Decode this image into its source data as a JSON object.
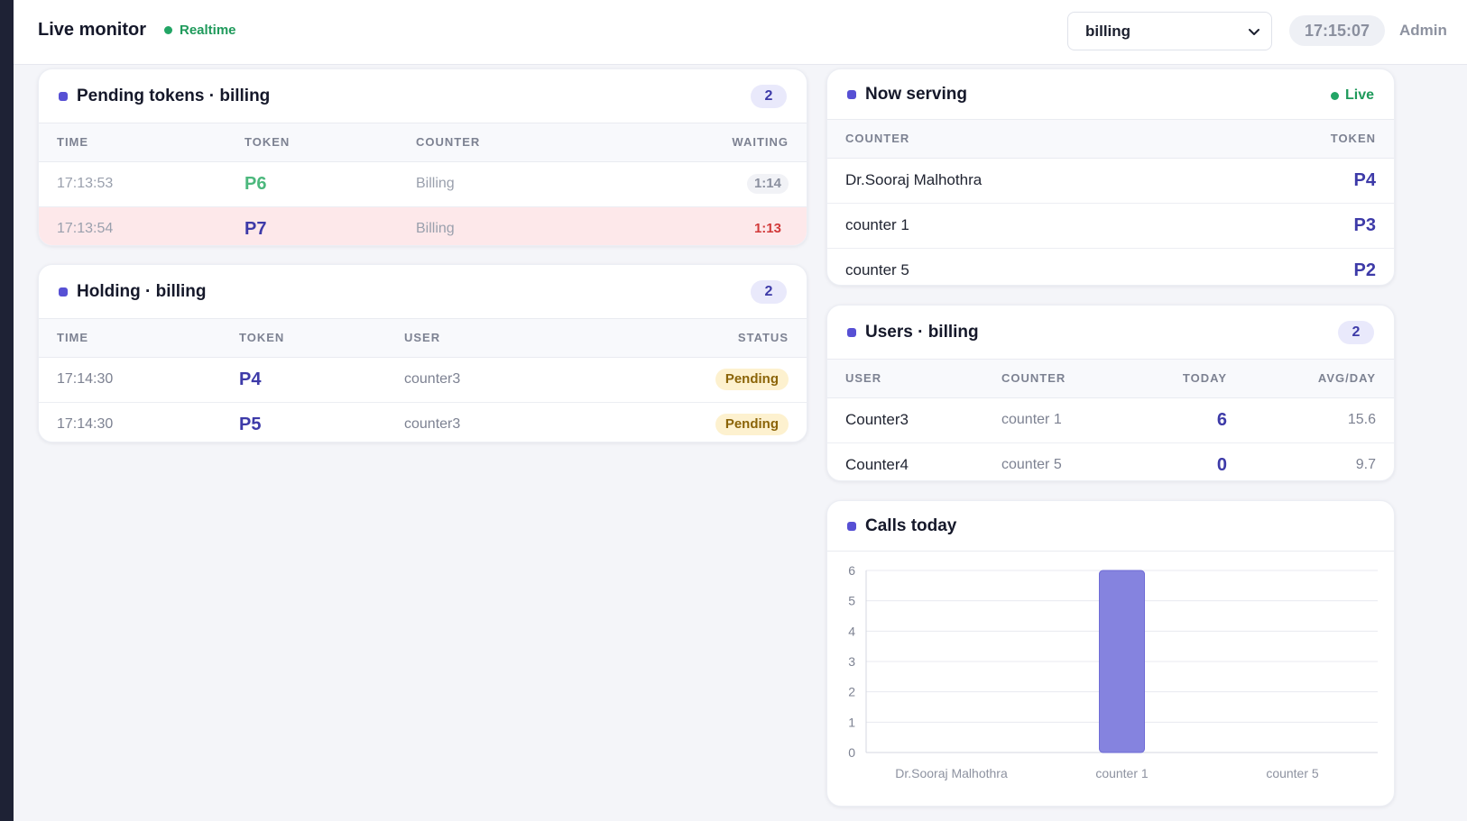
{
  "header": {
    "title": "Live monitor",
    "realtime_label": "Realtime",
    "department_selected": "billing",
    "clock": "17:15:07",
    "user": "Admin"
  },
  "pending": {
    "title": "Pending tokens · billing",
    "count": "2",
    "columns": [
      "TIME",
      "TOKEN",
      "COUNTER",
      "WAITING"
    ],
    "rows": [
      {
        "time": "17:13:53",
        "token": "P6",
        "counter": "Billing",
        "waiting": "1:14"
      },
      {
        "time": "17:13:54",
        "token": "P7",
        "counter": "Billing",
        "waiting": "1:13"
      }
    ]
  },
  "holding": {
    "title": "Holding · billing",
    "count": "2",
    "columns": [
      "TIME",
      "TOKEN",
      "USER",
      "STATUS"
    ],
    "rows": [
      {
        "time": "17:14:30",
        "token": "P4",
        "user": "counter3",
        "status": "Pending"
      },
      {
        "time": "17:14:30",
        "token": "P5",
        "user": "counter3",
        "status": "Pending"
      }
    ]
  },
  "serving": {
    "title": "Now serving",
    "live_label": "Live",
    "columns": [
      "COUNTER",
      "TOKEN"
    ],
    "rows": [
      {
        "counter": "Dr.Sooraj Malhothra",
        "token": "P4"
      },
      {
        "counter": "counter 1",
        "token": "P3"
      },
      {
        "counter": "counter 5",
        "token": "P2"
      }
    ]
  },
  "users": {
    "title": "Users · billing",
    "count": "2",
    "columns": [
      "USER",
      "COUNTER",
      "TODAY",
      "AVG/DAY"
    ],
    "rows": [
      {
        "user": "Counter3",
        "counter": "counter 1",
        "today": "6",
        "avg": "15.6"
      },
      {
        "user": "Counter4",
        "counter": "counter 5",
        "today": "0",
        "avg": "9.7"
      }
    ]
  },
  "calls": {
    "title": "Calls today"
  },
  "chart_data": {
    "type": "bar",
    "title": "",
    "categories": [
      "Dr.Sooraj Malhothra",
      "counter 1",
      "counter 5"
    ],
    "values": [
      0,
      6,
      0
    ],
    "ylim": [
      0,
      6
    ],
    "yticks": [
      0,
      1,
      2,
      3,
      4,
      5,
      6
    ],
    "grid": true,
    "bar_color": "#8583df"
  },
  "colors": {
    "accent": "#5750d4",
    "live_green": "#22a565",
    "alert_bg": "#fde8ea",
    "alert_text": "#d23a3a",
    "pending_bg": "#fdf1cf"
  }
}
